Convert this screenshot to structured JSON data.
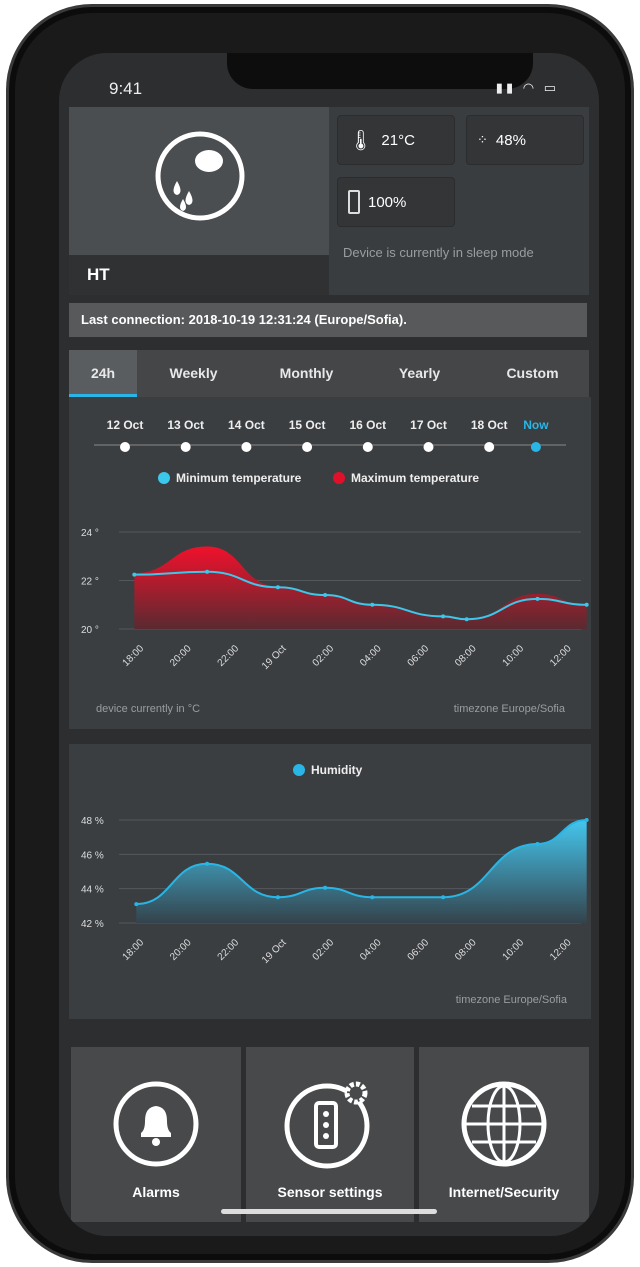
{
  "status_bar": {
    "time": "9:41",
    "icons": [
      "signal-icon",
      "wifi-icon",
      "battery-icon"
    ]
  },
  "device": {
    "name": "HT",
    "icon": "weather-humidity-icon",
    "temperature": "21°C",
    "humidity": "48%",
    "battery": "100%",
    "status": "Device is currently in sleep mode"
  },
  "last_connection": "Last connection: 2018-10-19 12:31:24 (Europe/Sofia).",
  "tabs": [
    {
      "label": "24h",
      "active": true
    },
    {
      "label": "Weekly"
    },
    {
      "label": "Monthly"
    },
    {
      "label": "Yearly"
    },
    {
      "label": "Custom"
    }
  ],
  "timeline": {
    "days": [
      "12 Oct",
      "13 Oct",
      "14 Oct",
      "15 Oct",
      "16 Oct",
      "17 Oct",
      "18 Oct",
      "Now"
    ],
    "selected": "Now"
  },
  "colors": {
    "accent": "#29b6e6",
    "max_temp": "#e0102a",
    "min_temp": "#3cc8ea"
  },
  "temperature_footer_left": "device currently in °C",
  "temperature_footer_right": "timezone Europe/Sofia",
  "humidity_footer_right": "timezone Europe/Sofia",
  "chart_data": [
    {
      "type": "area",
      "legend": [
        "Minimum temperature",
        "Maximum temperature"
      ],
      "legend_placement": "top",
      "y_ticks": [
        "24 °",
        "22 °",
        "20 °"
      ],
      "ylim": [
        20,
        24
      ],
      "x_ticks": [
        "18:00",
        "20:00",
        "22:00",
        "19 Oct",
        "02:00",
        "04:00",
        "06:00",
        "08:00",
        "10:00",
        "12:00"
      ],
      "series": [
        {
          "name": "Minimum temperature",
          "values": [
            22.24,
            22.36,
            21.72,
            21.4,
            21.0,
            20.52,
            20.4,
            21.24,
            21.0
          ]
        },
        {
          "name": "Maximum temperature",
          "values": [
            22.3,
            23.4,
            21.75,
            21.4,
            21.0,
            20.52,
            20.4,
            21.45,
            21.0
          ]
        }
      ],
      "x": [
        "17:10",
        "20:15",
        "23:15",
        "01:15",
        "03:15",
        "06:15",
        "07:15",
        "10:15",
        "12:20"
      ],
      "grid": true
    },
    {
      "type": "area",
      "legend": [
        "Humidity"
      ],
      "legend_placement": "top",
      "y_ticks": [
        "48 %",
        "46 %",
        "44 %",
        "42 %"
      ],
      "ylim": [
        42,
        48
      ],
      "x_ticks": [
        "18:00",
        "20:00",
        "22:00",
        "19 Oct",
        "02:00",
        "04:00",
        "06:00",
        "08:00",
        "10:00",
        "12:00"
      ],
      "series": [
        {
          "name": "Humidity",
          "values": [
            43.1,
            45.45,
            43.5,
            44.05,
            43.5,
            43.5,
            46.6,
            48.0
          ]
        }
      ],
      "x": [
        "17:15",
        "20:15",
        "23:15",
        "01:15",
        "03:15",
        "06:15",
        "10:15",
        "12:20"
      ],
      "grid": true
    }
  ],
  "bottom_tiles": [
    {
      "label": "Alarms",
      "icon": "bell-icon"
    },
    {
      "label": "Sensor settings",
      "icon": "sensor-settings-icon"
    },
    {
      "label": "Internet/Security",
      "icon": "globe-icon"
    }
  ]
}
